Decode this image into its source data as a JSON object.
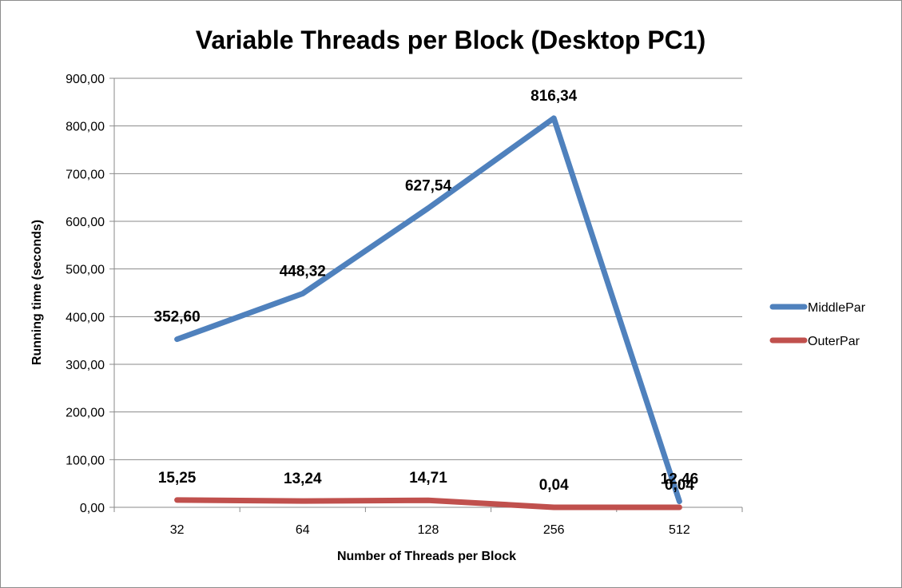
{
  "chart_data": {
    "type": "line",
    "title": "Variable Threads per Block (Desktop PC1)",
    "xlabel": "Number of Threads per Block",
    "ylabel": "Running time (seconds)",
    "categories": [
      "32",
      "64",
      "128",
      "256",
      "512"
    ],
    "ylim": [
      0,
      900
    ],
    "yticks": [
      "0,00",
      "100,00",
      "200,00",
      "300,00",
      "400,00",
      "500,00",
      "600,00",
      "700,00",
      "800,00",
      "900,00"
    ],
    "grid": true,
    "legend_position": "right",
    "series": [
      {
        "name": "MiddlePar",
        "color": "#4f81bd",
        "values": [
          352.6,
          448.32,
          627.54,
          816.34,
          12.46
        ],
        "labels": [
          "352,60",
          "448,32",
          "627,54",
          "816,34",
          "12,46"
        ]
      },
      {
        "name": "OuterPar",
        "color": "#c0504d",
        "values": [
          15.25,
          13.24,
          14.71,
          0.04,
          0.04
        ],
        "labels": [
          "15,25",
          "13,24",
          "14,71",
          "0,04",
          "0,04"
        ]
      }
    ]
  }
}
